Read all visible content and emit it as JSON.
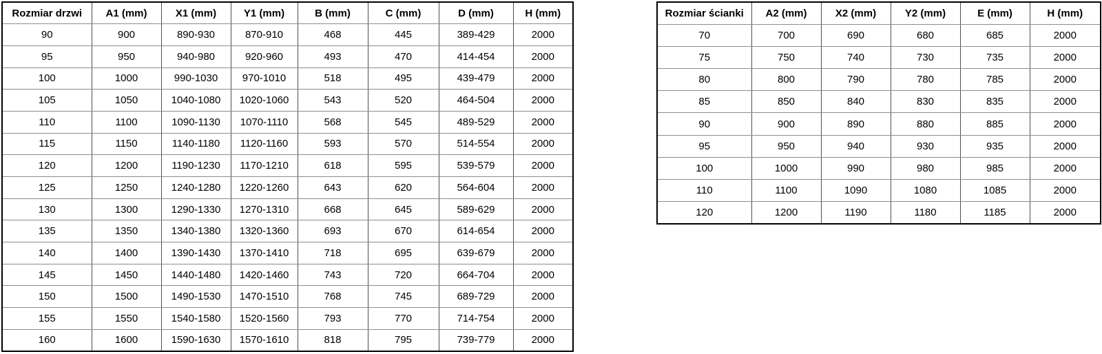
{
  "page": {
    "background_color": "#ffffff",
    "text_color": "#000000",
    "outer_border_color": "#000000",
    "grid_line_color": "#6e6e6e"
  },
  "tables": {
    "doors": {
      "headers": [
        "Rozmiar drzwi",
        "A1 (mm)",
        "X1 (mm)",
        "Y1 (mm)",
        "B (mm)",
        "C (mm)",
        "D (mm)",
        "H (mm)"
      ],
      "rows": [
        [
          "90",
          "900",
          "890-930",
          "870-910",
          "468",
          "445",
          "389-429",
          "2000"
        ],
        [
          "95",
          "950",
          "940-980",
          "920-960",
          "493",
          "470",
          "414-454",
          "2000"
        ],
        [
          "100",
          "1000",
          "990-1030",
          "970-1010",
          "518",
          "495",
          "439-479",
          "2000"
        ],
        [
          "105",
          "1050",
          "1040-1080",
          "1020-1060",
          "543",
          "520",
          "464-504",
          "2000"
        ],
        [
          "110",
          "1100",
          "1090-1130",
          "1070-1110",
          "568",
          "545",
          "489-529",
          "2000"
        ],
        [
          "115",
          "1150",
          "1140-1180",
          "1120-1160",
          "593",
          "570",
          "514-554",
          "2000"
        ],
        [
          "120",
          "1200",
          "1190-1230",
          "1170-1210",
          "618",
          "595",
          "539-579",
          "2000"
        ],
        [
          "125",
          "1250",
          "1240-1280",
          "1220-1260",
          "643",
          "620",
          "564-604",
          "2000"
        ],
        [
          "130",
          "1300",
          "1290-1330",
          "1270-1310",
          "668",
          "645",
          "589-629",
          "2000"
        ],
        [
          "135",
          "1350",
          "1340-1380",
          "1320-1360",
          "693",
          "670",
          "614-654",
          "2000"
        ],
        [
          "140",
          "1400",
          "1390-1430",
          "1370-1410",
          "718",
          "695",
          "639-679",
          "2000"
        ],
        [
          "145",
          "1450",
          "1440-1480",
          "1420-1460",
          "743",
          "720",
          "664-704",
          "2000"
        ],
        [
          "150",
          "1500",
          "1490-1530",
          "1470-1510",
          "768",
          "745",
          "689-729",
          "2000"
        ],
        [
          "155",
          "1550",
          "1540-1580",
          "1520-1560",
          "793",
          "770",
          "714-754",
          "2000"
        ],
        [
          "160",
          "1600",
          "1590-1630",
          "1570-1610",
          "818",
          "795",
          "739-779",
          "2000"
        ]
      ]
    },
    "walls": {
      "headers": [
        "Rozmiar ścianki",
        "A2 (mm)",
        "X2 (mm)",
        "Y2 (mm)",
        "E (mm)",
        "H (mm)"
      ],
      "rows": [
        [
          "70",
          "700",
          "690",
          "680",
          "685",
          "2000"
        ],
        [
          "75",
          "750",
          "740",
          "730",
          "735",
          "2000"
        ],
        [
          "80",
          "800",
          "790",
          "780",
          "785",
          "2000"
        ],
        [
          "85",
          "850",
          "840",
          "830",
          "835",
          "2000"
        ],
        [
          "90",
          "900",
          "890",
          "880",
          "885",
          "2000"
        ],
        [
          "95",
          "950",
          "940",
          "930",
          "935",
          "2000"
        ],
        [
          "100",
          "1000",
          "990",
          "980",
          "985",
          "2000"
        ],
        [
          "110",
          "1100",
          "1090",
          "1080",
          "1085",
          "2000"
        ],
        [
          "120",
          "1200",
          "1190",
          "1180",
          "1185",
          "2000"
        ]
      ]
    }
  }
}
